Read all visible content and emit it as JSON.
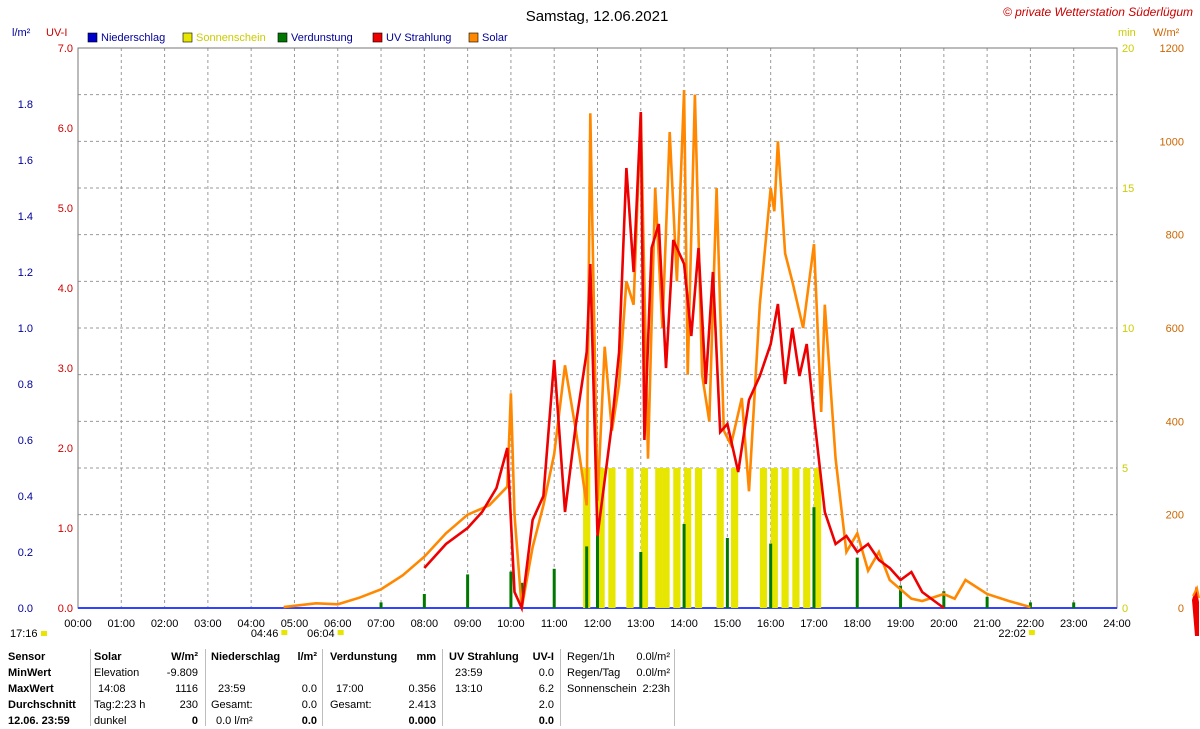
{
  "title": "Samstag, 12.06.2021",
  "copyright": "© private Wetterstation Süderlügum",
  "legend": [
    {
      "label": "Niederschlag",
      "color": "#0000cc",
      "text_color": "#000099"
    },
    {
      "label": "Sonnenschein",
      "color": "#e6e600",
      "text_color": "#cccc00"
    },
    {
      "label": "Verdunstung",
      "color": "#007700",
      "text_color": "#000099"
    },
    {
      "label": "UV Strahlung",
      "color": "#ee0000",
      "text_color": "#000099"
    },
    {
      "label": "Solar",
      "color": "#ff8800",
      "text_color": "#000099"
    }
  ],
  "axis_units": {
    "left_outer": "l/m²",
    "left_inner": "UV-I",
    "right_inner": "min",
    "right_outer": "W/m²"
  },
  "colors": {
    "precip_axis": "#000099",
    "uv_axis": "#cc0000",
    "sun_axis": "#cccc00",
    "solar_axis": "#cc6600",
    "uv": "#ee0000",
    "solar": "#ff8800",
    "sun": "#e6e600",
    "evap": "#007700",
    "precip": "#0000cc"
  },
  "chart_data": {
    "type": "line",
    "title": "Samstag, 12.06.2021",
    "x_ticks": [
      "00:00",
      "01:00",
      "02:00",
      "03:00",
      "04:00",
      "05:00",
      "06:00",
      "07:00",
      "08:00",
      "09:00",
      "10:00",
      "11:00",
      "12:00",
      "13:00",
      "14:00",
      "15:00",
      "16:00",
      "17:00",
      "18:00",
      "19:00",
      "20:00",
      "21:00",
      "22:00",
      "23:00",
      "24:00"
    ],
    "axes": {
      "precip": {
        "label": "l/m²",
        "ylim": [
          0,
          2.0
        ],
        "ticks": [
          "0.0",
          "0.2",
          "0.4",
          "0.6",
          "0.8",
          "1.0",
          "1.2",
          "1.4",
          "1.6",
          "1.8"
        ]
      },
      "uv": {
        "label": "UV-I",
        "ylim": [
          0,
          7.0
        ],
        "ticks": [
          "0.0",
          "1.0",
          "2.0",
          "3.0",
          "4.0",
          "5.0",
          "6.0",
          "7.0"
        ]
      },
      "sunshine": {
        "label": "min",
        "ylim": [
          0,
          20
        ],
        "ticks": [
          "0",
          "5",
          "10",
          "15",
          "20"
        ]
      },
      "solar": {
        "label": "W/m²",
        "ylim": [
          0,
          1200
        ],
        "ticks": [
          "0",
          "200",
          "400",
          "600",
          "800",
          "1000",
          "1200"
        ]
      }
    },
    "sun_markers": [
      {
        "label": "04:46",
        "time": "04:46"
      },
      {
        "label": "06:04",
        "time": "06:04"
      },
      {
        "label": "22:02",
        "time": "22:02"
      },
      {
        "label": "17:16",
        "time": "17:16"
      }
    ],
    "series": [
      {
        "name": "Solar",
        "axis": "solar",
        "x": [
          "04:45",
          "05:30",
          "06:00",
          "06:30",
          "07:00",
          "07:30",
          "08:00",
          "08:30",
          "09:00",
          "09:30",
          "09:55",
          "10:00",
          "10:05",
          "10:15",
          "10:30",
          "10:45",
          "11:00",
          "11:15",
          "11:30",
          "11:45",
          "11:50",
          "12:00",
          "12:10",
          "12:20",
          "12:30",
          "12:40",
          "12:50",
          "13:00",
          "13:10",
          "13:20",
          "13:30",
          "13:40",
          "13:50",
          "14:00",
          "14:05",
          "14:15",
          "14:25",
          "14:35",
          "14:45",
          "14:55",
          "15:05",
          "15:20",
          "15:30",
          "15:45",
          "16:00",
          "16:05",
          "16:10",
          "16:20",
          "16:30",
          "16:45",
          "17:00",
          "17:10",
          "17:15",
          "17:30",
          "17:45",
          "18:00",
          "18:15",
          "18:30",
          "18:45",
          "19:00",
          "19:15",
          "19:30",
          "20:00",
          "20:15",
          "20:30",
          "21:00",
          "21:30",
          "22:00"
        ],
        "y": [
          2,
          10,
          8,
          22,
          40,
          70,
          110,
          160,
          200,
          220,
          260,
          460,
          200,
          0,
          130,
          220,
          330,
          520,
          380,
          220,
          1060,
          230,
          560,
          380,
          480,
          700,
          650,
          1060,
          320,
          900,
          600,
          1020,
          700,
          1110,
          500,
          1100,
          500,
          400,
          900,
          380,
          350,
          450,
          250,
          650,
          900,
          850,
          1000,
          760,
          700,
          600,
          780,
          420,
          650,
          320,
          120,
          160,
          80,
          120,
          60,
          40,
          20,
          15,
          30,
          20,
          60,
          30,
          15,
          2
        ]
      },
      {
        "name": "UV Strahlung",
        "axis": "uv",
        "x": [
          "08:00",
          "08:30",
          "09:00",
          "09:20",
          "09:40",
          "09:55",
          "10:05",
          "10:15",
          "10:30",
          "10:45",
          "11:00",
          "11:15",
          "11:30",
          "11:45",
          "11:50",
          "12:00",
          "12:10",
          "12:20",
          "12:30",
          "12:40",
          "12:50",
          "13:00",
          "13:05",
          "13:15",
          "13:25",
          "13:35",
          "13:45",
          "14:00",
          "14:10",
          "14:20",
          "14:30",
          "14:40",
          "14:50",
          "15:00",
          "15:15",
          "15:30",
          "15:45",
          "16:00",
          "16:10",
          "16:20",
          "16:30",
          "16:40",
          "16:50",
          "17:00",
          "17:15",
          "17:30",
          "17:45",
          "18:00",
          "18:15",
          "18:30",
          "18:45",
          "19:00",
          "19:15",
          "19:30",
          "19:45",
          "20:00"
        ],
        "y": [
          0.5,
          0.8,
          1.0,
          1.2,
          1.5,
          2.0,
          0.2,
          0,
          1.1,
          1.4,
          3.1,
          1.2,
          2.3,
          3.2,
          4.3,
          0.9,
          1.6,
          2.3,
          3.2,
          5.5,
          4.2,
          6.2,
          2.1,
          4.5,
          4.8,
          3.0,
          4.6,
          4.3,
          3.4,
          4.5,
          2.8,
          4.2,
          2.2,
          2.3,
          1.7,
          2.6,
          2.9,
          3.3,
          3.8,
          2.8,
          3.5,
          2.9,
          3.3,
          2.4,
          1.2,
          0.8,
          0.9,
          0.7,
          0.8,
          0.6,
          0.5,
          0.35,
          0.45,
          0.2,
          0.1,
          0
        ]
      },
      {
        "name": "Verdunstung",
        "axis": "precip",
        "x": [
          "07:00",
          "08:00",
          "09:00",
          "10:00",
          "10:15",
          "11:00",
          "11:45",
          "12:00",
          "13:00",
          "14:00",
          "15:00",
          "16:00",
          "17:00",
          "18:00",
          "19:00",
          "20:00",
          "21:00",
          "22:00",
          "23:00"
        ],
        "y": [
          0.02,
          0.05,
          0.12,
          0.13,
          0.09,
          0.14,
          0.22,
          0.26,
          0.2,
          0.3,
          0.25,
          0.23,
          0.36,
          0.18,
          0.08,
          0.06,
          0.04,
          0.02,
          0.02
        ]
      },
      {
        "name": "Sonnenschein",
        "axis": "sunshine",
        "x": [
          "11:40",
          "12:00",
          "12:15",
          "12:40",
          "13:00",
          "13:20",
          "13:30",
          "13:45",
          "14:00",
          "14:15",
          "14:45",
          "15:05",
          "15:45",
          "16:00",
          "16:15",
          "16:30",
          "16:45",
          "17:00"
        ],
        "y": [
          5,
          5,
          5,
          5,
          5,
          5,
          5,
          5,
          5,
          5,
          5,
          5,
          5,
          5,
          5,
          5,
          5,
          5
        ]
      },
      {
        "name": "Niederschlag",
        "axis": "precip",
        "x": [],
        "y": []
      }
    ]
  },
  "table": {
    "row_labels": [
      "Sensor",
      "MinWert",
      "MaxWert",
      "Durchschnitt",
      "12.06. 23:59"
    ],
    "solar": {
      "header": "Solar",
      "unit": "W/m²",
      "rows": [
        [
          "Elevation",
          "-9.809"
        ],
        [
          "14:08",
          "1116"
        ],
        [
          "Tag:2:23 h",
          "230"
        ],
        [
          "dunkel",
          "0"
        ]
      ]
    },
    "niederschlag": {
      "header": "Niederschlag",
      "unit": "l/m²",
      "rows": [
        [
          "",
          ""
        ],
        [
          "23:59",
          "0.0"
        ],
        [
          "Gesamt:",
          "0.0"
        ],
        [
          "0.0 l/m²",
          "0.0"
        ]
      ]
    },
    "verdunstung": {
      "header": "Verdunstung",
      "unit": "mm",
      "rows": [
        [
          "",
          ""
        ],
        [
          "17:00",
          "0.356"
        ],
        [
          "Gesamt:",
          "2.413"
        ],
        [
          "",
          "0.000"
        ]
      ]
    },
    "uv": {
      "header": "UV Strahlung",
      "unit": "UV-I",
      "rows": [
        [
          "23:59",
          "0.0"
        ],
        [
          "13:10",
          "6.2"
        ],
        [
          "",
          "2.0"
        ],
        [
          "",
          "0.0"
        ]
      ]
    },
    "rain": {
      "rows": [
        [
          "Regen/1h",
          "0.0l/m²"
        ],
        [
          "Regen/Tag",
          "0.0l/m²"
        ],
        [
          "Sonnenschein",
          "2:23h"
        ]
      ]
    }
  }
}
